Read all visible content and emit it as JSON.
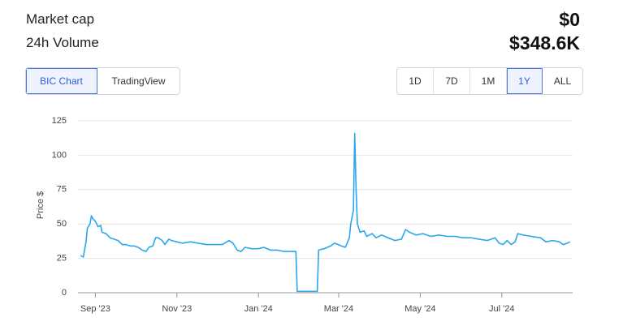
{
  "header": {
    "stats": [
      {
        "label": "Market cap",
        "value": "$0"
      },
      {
        "label": "24h Volume",
        "value": "$348.6K"
      }
    ]
  },
  "sources": [
    "BIC Chart",
    "TradingView"
  ],
  "ranges": [
    "1D",
    "7D",
    "1M",
    "1Y",
    "ALL"
  ],
  "chart_data": {
    "type": "line",
    "y_label": "Price $",
    "color": "#2ba6ec",
    "grid": true,
    "xlim": [
      -13,
      357
    ],
    "xticks": [
      {
        "value": 0,
        "label": "Sep '23"
      },
      {
        "value": 61,
        "label": "Nov '23"
      },
      {
        "value": 122,
        "label": "Jan '24"
      },
      {
        "value": 182,
        "label": "Mar '24"
      },
      {
        "value": 243,
        "label": "May '24"
      },
      {
        "value": 304,
        "label": "Jul '24"
      }
    ],
    "ylim": [
      0,
      125
    ],
    "yticks": [
      0,
      25,
      50,
      75,
      100,
      125
    ],
    "x": [
      -11,
      -9,
      -7,
      -6,
      -4,
      -3,
      -2,
      0,
      2,
      4,
      5,
      8,
      11,
      14,
      17,
      20,
      23,
      26,
      29,
      32,
      35,
      38,
      40,
      43,
      45,
      47,
      50,
      52,
      55,
      57,
      61,
      65,
      71,
      77,
      83,
      89,
      95,
      100,
      103,
      106,
      109,
      112,
      117,
      122,
      126,
      131,
      136,
      141,
      146,
      150,
      151,
      159,
      166,
      167,
      171,
      176,
      179,
      184,
      187,
      190,
      191,
      193,
      194,
      195,
      196,
      198,
      201,
      203,
      207,
      210,
      214,
      219,
      224,
      229,
      232,
      235,
      240,
      245,
      251,
      257,
      263,
      269,
      275,
      281,
      287,
      293,
      299,
      302,
      305,
      308,
      311,
      314,
      316,
      320,
      326,
      333,
      337,
      342,
      347,
      350,
      353,
      355
    ],
    "values": [
      27,
      26,
      37,
      47,
      50,
      56,
      54,
      52,
      48,
      49,
      44,
      43,
      40,
      39,
      38,
      35,
      35,
      34,
      34,
      33,
      31,
      30,
      33,
      34,
      40,
      40,
      38,
      35,
      39,
      38,
      37,
      36,
      37,
      36,
      35,
      35,
      35,
      38,
      36,
      31,
      30,
      33,
      32,
      32,
      33,
      31,
      31,
      30,
      30,
      30,
      1,
      1,
      1,
      31,
      32,
      34,
      36,
      34,
      33,
      40,
      50,
      60,
      116,
      75,
      50,
      44,
      45,
      41,
      43,
      40,
      42,
      40,
      38,
      39,
      46,
      44,
      42,
      43,
      41,
      42,
      41,
      41,
      40,
      40,
      39,
      38,
      40,
      36,
      35,
      38,
      35,
      37,
      43,
      42,
      41,
      40,
      37,
      38,
      37,
      35,
      36,
      37
    ]
  }
}
